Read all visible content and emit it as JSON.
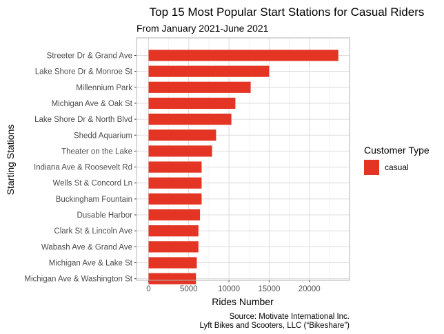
{
  "chart_data": {
    "type": "bar",
    "orientation": "horizontal",
    "title": "Top 15 Most Popular Start Stations for Casual Riders",
    "subtitle": "From January 2021-June 2021",
    "xlabel": "Rides Number",
    "ylabel": "Starting Stations",
    "categories": [
      "Streeter Dr & Grand Ave",
      "Lake Shore Dr & Monroe St",
      "Millennium Park",
      "Michigan Ave & Oak St",
      "Lake Shore Dr & North Blvd",
      "Shedd Aquarium",
      "Theater on the Lake",
      "Indiana Ave & Roosevelt Rd",
      "Wells St & Concord Ln",
      "Buckingham Fountain",
      "Dusable Harbor",
      "Clark St & Lincoln Ave",
      "Wabash Ave & Grand Ave",
      "Michigan Ave & Lake St",
      "Michigan Ave & Washington St"
    ],
    "series": [
      {
        "name": "casual",
        "color": "#e33424",
        "values": [
          23600,
          15000,
          12700,
          10800,
          10300,
          8400,
          7900,
          6600,
          6600,
          6600,
          6400,
          6200,
          6200,
          6000,
          5900
        ]
      }
    ],
    "x_ticks": [
      "0",
      "5000",
      "10000",
      "15000",
      "20000"
    ],
    "xlim": [
      -1500,
      25000
    ],
    "grid": true,
    "legend": {
      "title": "Customer Type",
      "position": "right"
    },
    "caption": [
      "Source: Motivate International Inc.",
      "Lyft Bikes and Scooters, LLC (“Bikeshare”)"
    ]
  }
}
